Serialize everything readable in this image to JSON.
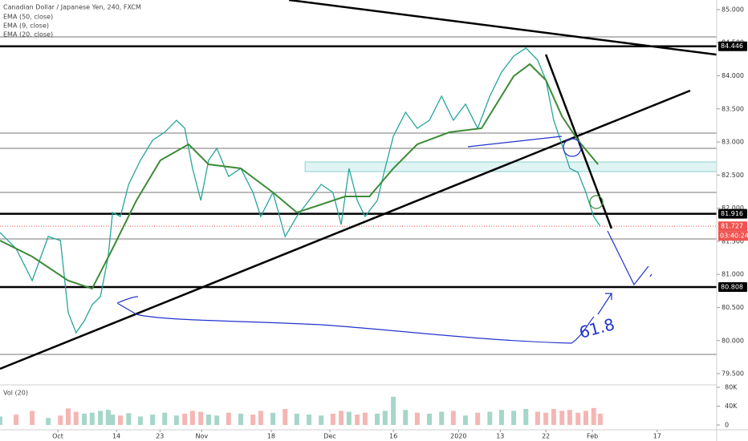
{
  "chart_data": {
    "type": "line",
    "title": "Canadian Dollar / Japanese Yen, 240, FXCM",
    "indicators": [
      "EMA (50, close)",
      "EMA (9, close)",
      "EMA (20, close)"
    ],
    "xlim": [
      -13.3,
      151.6
    ],
    "ylim": [
      79.355,
      85.145
    ],
    "xticks": [
      {
        "value": 0,
        "label": "Oct"
      },
      {
        "value": 13.5,
        "label": "14"
      },
      {
        "value": 23.5,
        "label": "23"
      },
      {
        "value": 33.1,
        "label": "Nov"
      },
      {
        "value": 49.1,
        "label": "18"
      },
      {
        "value": 62.6,
        "label": "Dec"
      },
      {
        "value": 77.2,
        "label": "16"
      },
      {
        "value": 92.2,
        "label": "2020"
      },
      {
        "value": 101.8,
        "label": "13"
      },
      {
        "value": 112.3,
        "label": "22"
      },
      {
        "value": 123,
        "label": "Feb"
      },
      {
        "value": 137.9,
        "label": "17"
      }
    ],
    "yticks": [
      {
        "value": 79.5,
        "label": "79.500"
      },
      {
        "value": 80,
        "label": "80.000"
      },
      {
        "value": 80.5,
        "label": "80.500"
      },
      {
        "value": 81,
        "label": "81.000"
      },
      {
        "value": 81.5,
        "label": "81.500"
      },
      {
        "value": 82,
        "label": "82.000"
      },
      {
        "value": 82.5,
        "label": "82.500"
      },
      {
        "value": 83,
        "label": "83.000"
      },
      {
        "value": 83.5,
        "label": "83.500"
      },
      {
        "value": 84,
        "label": "84.000"
      },
      {
        "value": 84.5,
        "label": "84.500"
      },
      {
        "value": 85,
        "label": "85.000"
      }
    ],
    "series": [
      {
        "name": "CADJPY",
        "color": "#26a69a",
        "x": [
          -13.3,
          -9.6,
          -5.9,
          -2.2,
          0.6,
          2.4,
          4.2,
          6.1,
          7.9,
          9.8,
          11.6,
          12.6,
          14.4,
          16.3,
          19.0,
          21.8,
          24.6,
          27.3,
          29.2,
          31.0,
          32.9,
          34.7,
          36.6,
          39.3,
          42.1,
          44.9,
          46.7,
          49.5,
          52.3,
          55.0,
          57.8,
          60.6,
          63.3,
          65.2,
          67.0,
          68.9,
          70.7,
          73.5,
          75.3,
          77.2,
          80.0,
          82.7,
          85.5,
          88.3,
          91.0,
          93.8,
          96.6,
          99.4,
          102.1,
          104.9,
          107.7,
          110.4,
          112.3,
          114.1,
          116.0,
          117.8,
          119.7,
          121.5,
          123.3,
          124.8
        ],
        "values": [
          81.632,
          81.39,
          80.906,
          81.572,
          81.511,
          80.421,
          80.118,
          80.3,
          80.542,
          80.663,
          81.269,
          81.935,
          81.875,
          82.359,
          82.723,
          83.025,
          83.147,
          83.328,
          83.207,
          82.601,
          82.117,
          82.723,
          82.904,
          82.48,
          82.601,
          82.238,
          81.875,
          82.238,
          81.572,
          81.875,
          82.117,
          82.359,
          82.238,
          81.753,
          82.601,
          82.117,
          81.875,
          82.117,
          82.601,
          83.086,
          83.449,
          83.207,
          83.328,
          83.692,
          83.328,
          83.571,
          83.207,
          83.692,
          84.055,
          84.297,
          84.419,
          84.237,
          83.934,
          83.328,
          82.965,
          82.601,
          82.541,
          82.238,
          81.875,
          81.727
        ]
      },
      {
        "name": "EMA (50, close)",
        "color": "#3d8b37",
        "x": [
          -13.3,
          -5.9,
          2.4,
          7.9,
          12.6,
          18.1,
          23.6,
          30.1,
          34.7,
          42.1,
          49.5,
          55.0,
          60.6,
          66.1,
          71.7,
          77.2,
          82.7,
          90.1,
          97.5,
          104.9,
          108.6,
          112.3,
          116.0,
          119.7,
          124.3
        ],
        "values": [
          81.511,
          81.269,
          80.906,
          80.785,
          81.39,
          82.117,
          82.723,
          82.965,
          82.662,
          82.601,
          82.238,
          81.935,
          82.056,
          82.177,
          82.177,
          82.601,
          82.965,
          83.147,
          83.207,
          83.995,
          84.176,
          83.934,
          83.389,
          83.025,
          82.662
        ]
      }
    ],
    "levels": [
      84.588,
      83.134,
      82.904,
      82.238,
      81.535,
      79.791
    ],
    "markers": [
      {
        "value": 84.446,
        "label": "84.446"
      },
      {
        "value": 81.916,
        "label": "81.916"
      },
      {
        "value": 80.808,
        "label": "80.808"
      }
    ],
    "last_price": {
      "value": 81.727,
      "label": "81.727",
      "countdown": "03:40:24"
    },
    "zone": [
      82.553,
      82.698
    ],
    "zone_start": 56.9,
    "trendlines": [
      {
        "x": [
          -13.3,
          145.5
        ],
        "values": [
          79.573,
          83.776
        ]
      },
      {
        "x": [
          53.2,
          151.6
        ],
        "values": [
          85.145,
          84.32
        ]
      },
      {
        "x": [
          112.3,
          127.4
        ],
        "values": [
          84.322,
          81.693
        ]
      }
    ],
    "annotation": "61.8",
    "volume": {
      "title": "Vol (20)",
      "ylim": [
        -8500,
        88500
      ],
      "yticks": [
        {
          "value": 0,
          "label": "0"
        },
        {
          "value": 40000,
          "label": "40K"
        },
        {
          "value": 80000,
          "label": "80K"
        }
      ],
      "values": [
        18000,
        22000,
        30000,
        15000,
        20000,
        35000,
        28000,
        24000,
        26000,
        30000,
        32000,
        22000,
        20000,
        25000,
        18000,
        22000,
        26000,
        20000,
        24000,
        30000,
        28000,
        22000,
        20000,
        26000,
        24000,
        22000,
        30000,
        26000,
        34000,
        24000,
        22000,
        20000,
        24000,
        30000,
        28000,
        22000,
        26000,
        24000,
        30000,
        60000,
        32000,
        26000,
        24000,
        28000,
        30000,
        20000,
        26000,
        28000,
        32000,
        30000,
        34000,
        28000,
        26000,
        34000,
        30000,
        32000,
        26000,
        30000,
        36000,
        24000
      ]
    }
  }
}
